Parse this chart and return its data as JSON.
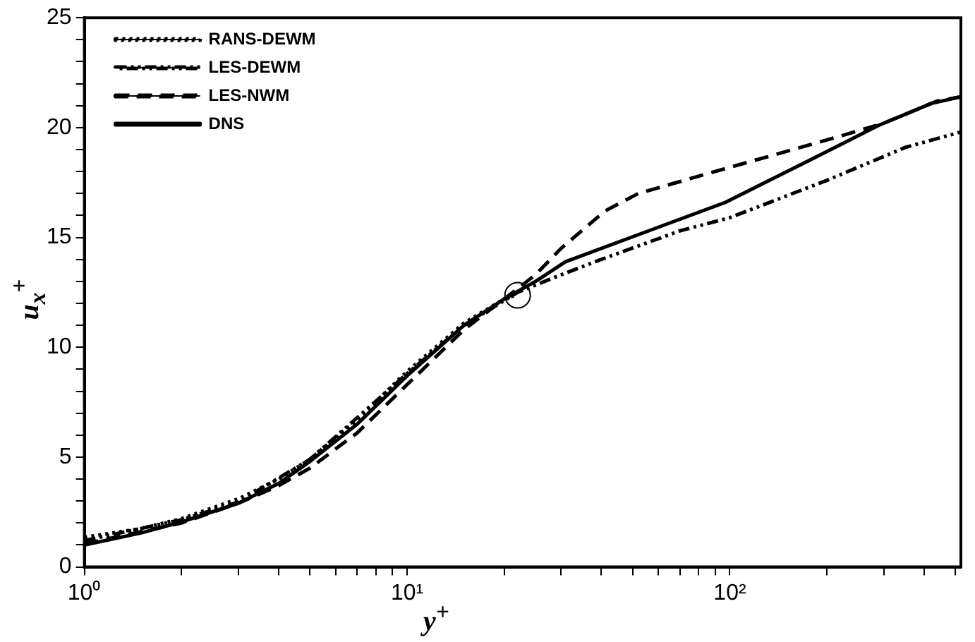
{
  "chart_data": {
    "type": "line",
    "xlabel": "y$^{+}$",
    "ylabel": "u$_{x}$$^{+}$",
    "log": "x",
    "grid": false,
    "legend": "top left",
    "xlim": [
      1,
      520
    ],
    "ylim": [
      0,
      25
    ],
    "xticks": [
      {
        "value": 1,
        "label": "10⁰"
      },
      {
        "value": 2,
        "label": null
      },
      {
        "value": 3,
        "label": null
      },
      {
        "value": 4,
        "label": null
      },
      {
        "value": 5,
        "label": null
      },
      {
        "value": 6,
        "label": null
      },
      {
        "value": 7,
        "label": null
      },
      {
        "value": 8,
        "label": null
      },
      {
        "value": 9,
        "label": null
      },
      {
        "value": 10,
        "label": "10¹"
      },
      {
        "value": 20,
        "label": null
      },
      {
        "value": 30,
        "label": null
      },
      {
        "value": 40,
        "label": null
      },
      {
        "value": 50,
        "label": null
      },
      {
        "value": 60,
        "label": null
      },
      {
        "value": 70,
        "label": null
      },
      {
        "value": 80,
        "label": null
      },
      {
        "value": 90,
        "label": null
      },
      {
        "value": 100,
        "label": "10²"
      },
      {
        "value": 200,
        "label": null
      },
      {
        "value": 300,
        "label": null
      },
      {
        "value": 400,
        "label": null
      },
      {
        "value": 500,
        "label": null
      }
    ],
    "yticks": [
      0,
      {
        "value": 1,
        "label": null
      },
      {
        "value": 2,
        "label": null
      },
      {
        "value": 3,
        "label": null
      },
      {
        "value": 4,
        "label": null
      },
      5,
      {
        "value": 6,
        "label": null
      },
      {
        "value": 7,
        "label": null
      },
      {
        "value": 8,
        "label": null
      },
      {
        "value": 9,
        "label": null
      },
      10,
      {
        "value": 11,
        "label": null
      },
      {
        "value": 12,
        "label": null
      },
      {
        "value": 13,
        "label": null
      },
      {
        "value": 14,
        "label": null
      },
      15,
      {
        "value": 16,
        "label": null
      },
      {
        "value": 17,
        "label": null
      },
      {
        "value": 18,
        "label": null
      },
      {
        "value": 19,
        "label": null
      },
      20,
      {
        "value": 21,
        "label": null
      },
      {
        "value": 22,
        "label": null
      },
      {
        "value": 23,
        "label": null
      },
      {
        "value": 24,
        "label": null
      },
      25
    ],
    "series": [
      {
        "name": "RANS-DEWM",
        "color": "#000000",
        "line_style": "dotted",
        "marker": "none",
        "x": [
          1,
          1.5,
          2,
          3,
          4,
          5,
          7,
          10,
          15,
          20,
          22
        ],
        "values": [
          1.35,
          1.75,
          2.2,
          3.1,
          4.0,
          4.9,
          6.7,
          8.9,
          11.1,
          12.2,
          12.4
        ]
      },
      {
        "name": "LES-DEWM",
        "color": "#000000",
        "line_style": "dashdot",
        "marker": "none",
        "x": [
          1,
          2,
          3,
          5,
          10,
          15,
          22,
          30,
          40,
          70,
          100,
          200,
          350,
          520
        ],
        "values": [
          1.2,
          2.15,
          2.95,
          4.9,
          8.8,
          11.0,
          12.5,
          13.3,
          14.0,
          15.3,
          15.9,
          17.6,
          19.1,
          19.8
        ]
      },
      {
        "name": "LES-NWM",
        "color": "#000000",
        "line_style": "dashed",
        "marker": "none",
        "x": [
          1,
          2,
          3,
          4,
          5,
          7,
          10,
          15,
          20,
          25,
          30,
          41,
          52,
          90,
          207,
          300,
          437,
          520
        ],
        "values": [
          1.05,
          2.0,
          2.9,
          3.7,
          4.5,
          6.1,
          8.3,
          10.8,
          12.2,
          13.3,
          14.5,
          16.2,
          17.0,
          18.0,
          19.5,
          20.2,
          21.2,
          21.4
        ]
      },
      {
        "name": "DNS",
        "color": "#000000",
        "line_style": "solid",
        "marker": "none",
        "x": [
          1,
          1.5,
          2,
          3,
          4,
          5,
          7,
          10,
          15,
          20,
          25,
          31,
          56,
          97,
          173,
          289,
          421,
          520
        ],
        "values": [
          1.0,
          1.55,
          2.05,
          2.9,
          3.8,
          4.8,
          6.5,
          8.7,
          11.0,
          12.2,
          13.0,
          13.9,
          15.3,
          16.6,
          18.45,
          20.1,
          21.1,
          21.4
        ]
      },
      {
        "type": "scatter",
        "color": "#000000",
        "marker": "circle",
        "x": [
          22
        ],
        "values": [
          12.37
        ]
      }
    ]
  }
}
